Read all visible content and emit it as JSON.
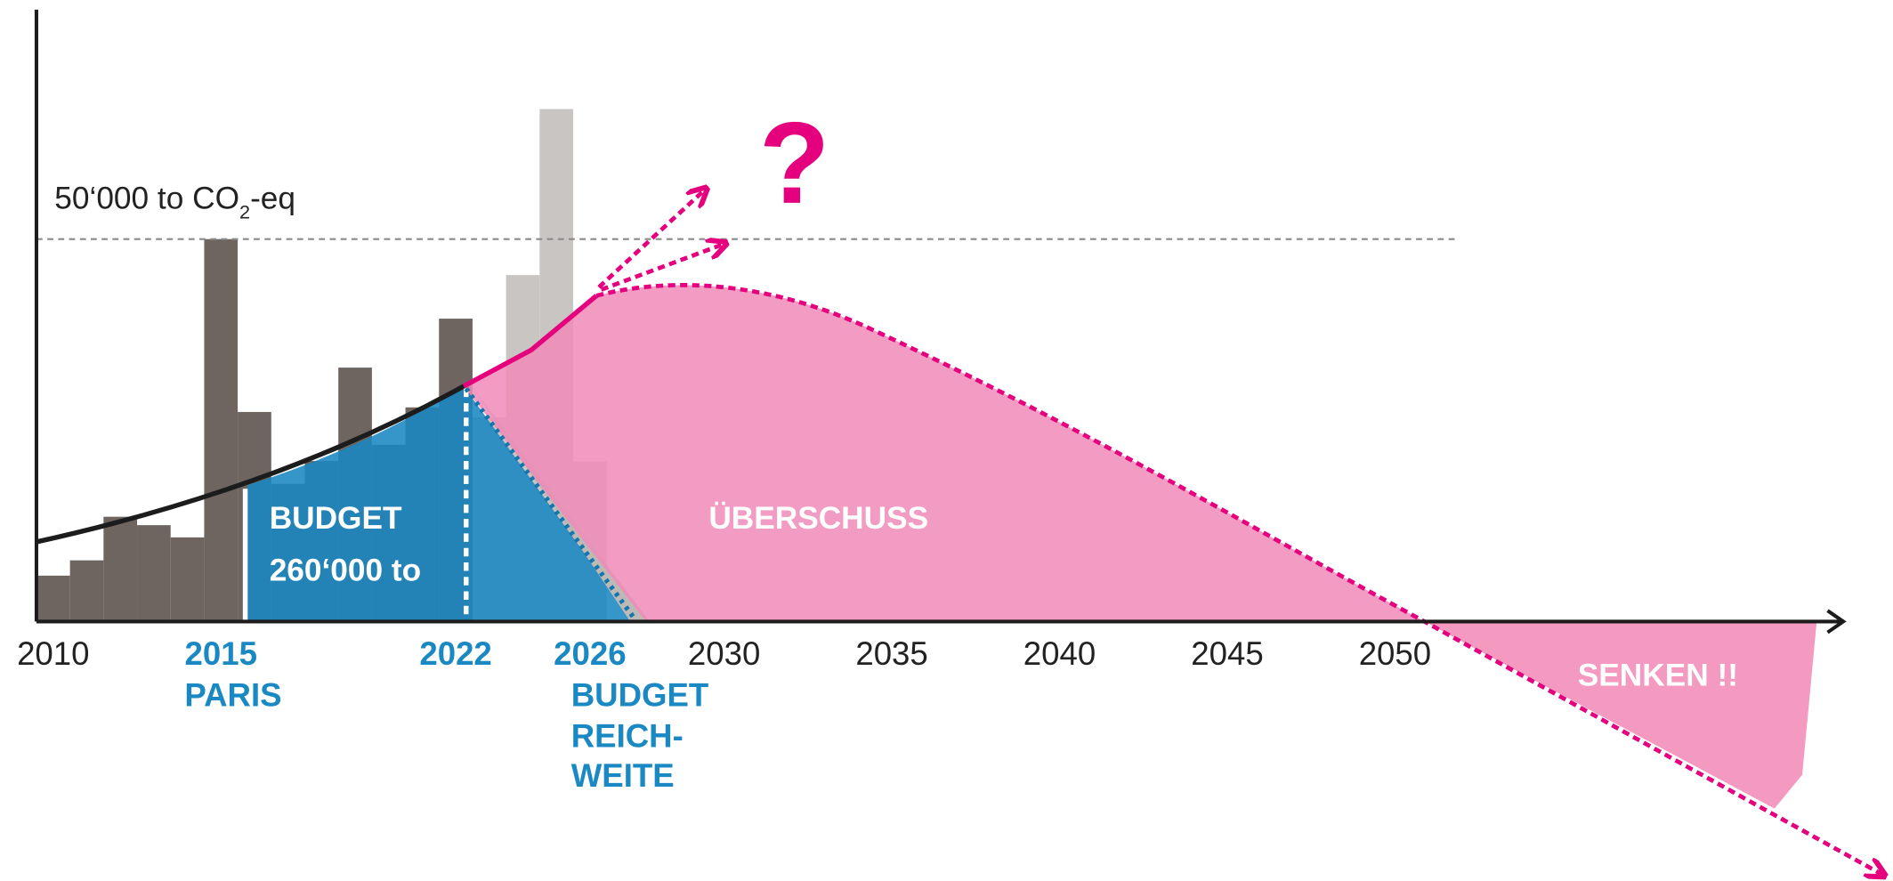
{
  "chart_data": {
    "type": "bar",
    "series": [
      {
        "color": "#6e6560",
        "x": [
          2010,
          2011,
          2012,
          2013,
          2014,
          2015,
          2016,
          2017,
          2018,
          2019,
          2020,
          2021,
          2022
        ],
        "values": [
          6000,
          8000,
          13700,
          12600,
          11000,
          50000,
          27400,
          18000,
          21000,
          33200,
          23100,
          28000,
          39600
        ]
      },
      {
        "color": "#c9c5c2",
        "x": [
          2023,
          2024,
          2025,
          2026
        ],
        "values": [
          26700,
          45300,
          67000,
          20900
        ]
      }
    ],
    "xlim": [
      2009.5,
      2063.4
    ],
    "ylim": [
      0,
      80000
    ],
    "xticks": [
      2010,
      2015,
      2022,
      2026,
      2030,
      2035,
      2040,
      2045,
      2050
    ],
    "xtick_colors": [
      "#222222",
      "#1a88c2",
      "#1a88c2",
      "#1a88c2",
      "#222222",
      "#222222",
      "#222222",
      "#222222",
      "#222222"
    ],
    "xtick_weights": [
      "normal",
      "bold",
      "bold",
      "bold",
      "normal",
      "normal",
      "normal",
      "normal",
      "normal"
    ],
    "reference_line": {
      "value": 50000,
      "label": [
        "50‘000 to CO",
        "2",
        "-eq"
      ]
    },
    "annotations": {
      "budget": [
        "BUDGET",
        "260‘000 to"
      ],
      "surplus": "ÜBERSCHUSS",
      "sinks": "SENKEN !!",
      "question": "?",
      "paris": "PARIS",
      "budget_range": [
        "BUDGET",
        "REICH-",
        "WEITE"
      ]
    }
  }
}
